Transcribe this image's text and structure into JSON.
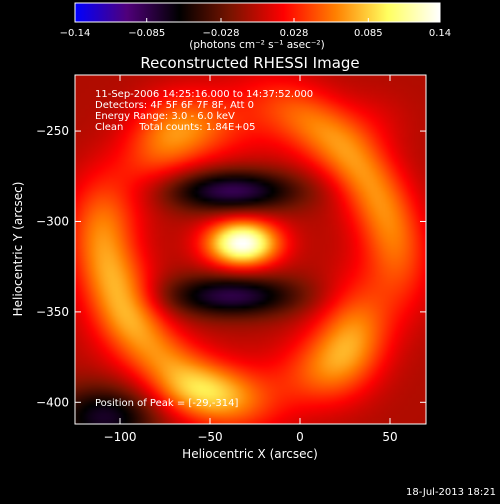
{
  "chart_data": {
    "type": "heatmap",
    "title": "Reconstructed RHESSI Image",
    "xlabel": "Heliocentric X (arcsec)",
    "ylabel": "Heliocentric Y (arcsec)",
    "xlim": [
      -125,
      70
    ],
    "ylim": [
      -412,
      -219
    ],
    "xticks": [
      -100,
      -50,
      0,
      50
    ],
    "xtick_labels": [
      "−100",
      "−50",
      "0",
      "50"
    ],
    "yticks": [
      -250,
      -300,
      -350,
      -400
    ],
    "ytick_labels": [
      "−250",
      "−300",
      "−350",
      "−400"
    ],
    "colorbar": {
      "range": [
        -0.14,
        0.14
      ],
      "ticks": [
        -0.14,
        -0.085,
        -0.028,
        0.028,
        0.085,
        0.14
      ],
      "tick_labels": [
        "−0.14",
        "−0.085",
        "−0.028",
        "0.028",
        "0.085",
        "0.14"
      ],
      "unit_label": "(photons cm⁻² s⁻¹ asec⁻²)",
      "colormap": [
        "#0000ff",
        "#50007a",
        "#000000",
        "#7a1400",
        "#ff0000",
        "#ff8000",
        "#ffff60",
        "#ffffff"
      ]
    },
    "annotations": {
      "time_range": "11-Sep-2006 14:25:16.000 to 14:37:52.000",
      "detectors": "Detectors: 4F 5F 6F 7F 8F, Att 0",
      "energy": "Energy Range: 3.0 - 6.0 keV",
      "method": "Clean     Total counts: 1.84E+05",
      "peak": "Position of Peak = [-29,-314]"
    },
    "peak_position": [
      -29,
      -314
    ],
    "components": [
      {
        "kind": "gaussian",
        "x": -32,
        "y": -312,
        "sx": 14,
        "sy": 9,
        "amp": 0.145
      },
      {
        "kind": "ring",
        "x": -30,
        "y": -318,
        "radius": 78,
        "width": 15,
        "amp": 0.072
      },
      {
        "kind": "gaussian",
        "x": -95,
        "y": -345,
        "sx": 14,
        "sy": 18,
        "amp": 0.02
      },
      {
        "kind": "gaussian",
        "x": 30,
        "y": -355,
        "sx": 15,
        "sy": 18,
        "amp": 0.018
      },
      {
        "kind": "gaussian",
        "x": -55,
        "y": -395,
        "sx": 20,
        "sy": 10,
        "amp": 0.03
      },
      {
        "kind": "gaussian",
        "x": 40,
        "y": -245,
        "sx": 15,
        "sy": 12,
        "amp": 0.012
      },
      {
        "kind": "gaussian",
        "x": -38,
        "y": -283,
        "sx": 26,
        "sy": 8,
        "amp": -0.085
      },
      {
        "kind": "gaussian",
        "x": -38,
        "y": -341,
        "sx": 26,
        "sy": 8,
        "amp": -0.08
      },
      {
        "kind": "gaussian",
        "x": -108,
        "y": -408,
        "sx": 20,
        "sy": 12,
        "amp": -0.07
      }
    ]
  },
  "footer": {
    "timestamp": "18-Jul-2013 18:21"
  }
}
